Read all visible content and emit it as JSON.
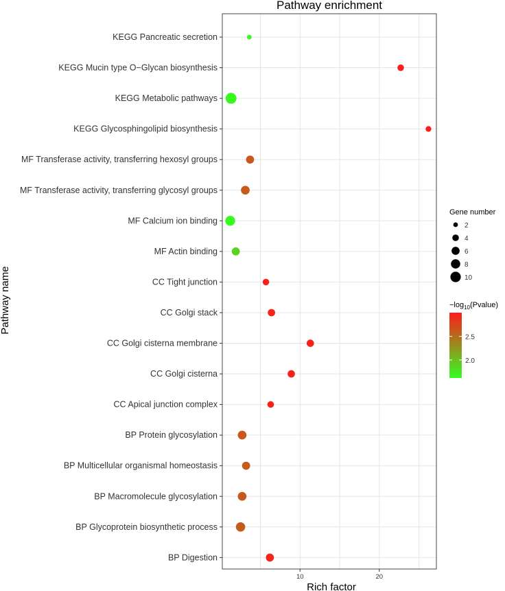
{
  "chart_data": {
    "type": "scatter",
    "title": "Pathway enrichment",
    "xlabel": "Rich factor",
    "ylabel": "Pathway name",
    "xlim": [
      0.2,
      27.2
    ],
    "xticks": [
      10,
      20
    ],
    "grid": true,
    "pathways": [
      "KEGG Pancreatic secretion",
      "KEGG Mucin type O−Glycan biosynthesis",
      "KEGG Metabolic pathways",
      "KEGG Glycosphingolipid biosynthesis",
      "MF Transferase activity, transferring hexosyl groups",
      "MF Transferase activity, transferring glycosyl groups",
      "MF Calcium ion binding",
      "MF Actin binding",
      "CC Tight junction",
      "CC Golgi stack",
      "CC Golgi cisterna membrane",
      "CC Golgi cisterna",
      "CC Apical junction complex",
      "BP Protein glycosylation",
      "BP Multicellular organismal homeostasis",
      "BP Macromolecule glycosylation",
      "BP Glycoprotein biosynthetic process",
      "BP Digestion"
    ],
    "rich_factor": [
      3.6,
      22.7,
      1.3,
      26.2,
      3.7,
      3.1,
      1.2,
      1.9,
      5.7,
      6.4,
      11.3,
      8.9,
      6.3,
      2.7,
      3.2,
      2.7,
      2.5,
      6.2
    ],
    "gene_number": [
      2,
      4,
      11,
      3,
      6,
      7,
      9,
      6,
      4,
      5,
      5,
      5,
      4,
      7,
      6,
      7,
      8,
      6
    ],
    "neg_log10_pvalue": [
      1.68,
      2.96,
      1.66,
      2.98,
      2.62,
      2.6,
      1.65,
      1.9,
      2.95,
      2.94,
      2.95,
      2.95,
      2.97,
      2.62,
      2.6,
      2.62,
      2.6,
      2.94
    ],
    "size_legend": {
      "title": "Gene number",
      "values": [
        2,
        4,
        6,
        8,
        10
      ]
    },
    "color_legend": {
      "title_prefix": "−log",
      "title_subscript": "10",
      "title_suffix": "(Pvalue)",
      "min": 1.62,
      "max": 3.0,
      "ticks": [
        2.0,
        2.5
      ],
      "low_color": "#33ff22",
      "high_color": "#ff1a1a"
    }
  }
}
